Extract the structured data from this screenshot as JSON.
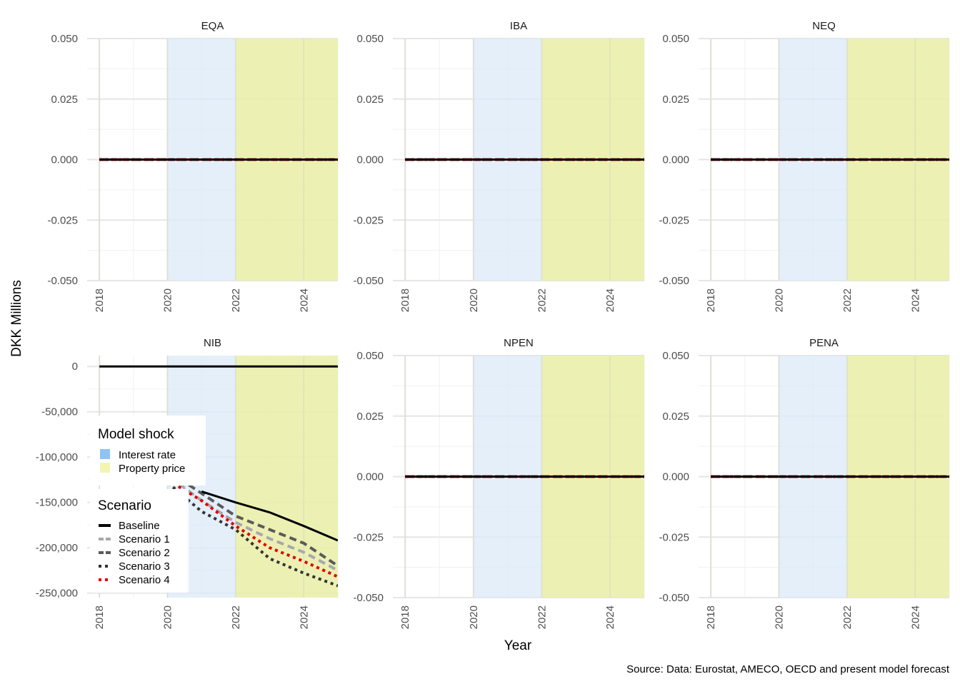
{
  "y_axis_label": "DKK Millions",
  "x_axis_label": "Year",
  "caption": "Source: Data: Eurostat, AMECO, OECD and present model forecast",
  "colors": {
    "interest_rate_band": "#dbe9f8",
    "property_price_band": "#e9eea6",
    "grid": "#e6e6e6",
    "baseline": "#000000",
    "scenario_1": "#a8a8b0",
    "scenario_2": "#5a5a5a",
    "scenario_3": "#333333",
    "scenario_4": "#e00000"
  },
  "legend": {
    "shock_title": "Model shock",
    "shock_items": [
      {
        "label": "Interest rate",
        "color": "#8fc3f2"
      },
      {
        "label": "Property price",
        "color": "#f3f5b0"
      }
    ],
    "scenario_title": "Scenario",
    "scenario_items": [
      {
        "label": "Baseline",
        "color": "#000000",
        "dash": "solid"
      },
      {
        "label": "Scenario 1",
        "color": "#a8a8b0",
        "dash": "dashed"
      },
      {
        "label": "Scenario 2",
        "color": "#5a5a5a",
        "dash": "dashed"
      },
      {
        "label": "Scenario 3",
        "color": "#333333",
        "dash": "dotted"
      },
      {
        "label": "Scenario 4",
        "color": "#e00000",
        "dash": "dotted"
      }
    ]
  },
  "chart_data": [
    {
      "type": "line",
      "title": "EQA",
      "xlim": [
        2018,
        2025
      ],
      "x_ticks": [
        2018,
        2020,
        2022,
        2024
      ],
      "ylim": [
        -0.05,
        0.05
      ],
      "y_ticks": [
        0.05,
        0.025,
        0,
        -0.025,
        -0.05
      ],
      "y_tick_labels": [
        "0.050",
        "0.025",
        "0.000",
        "-0.025",
        "-0.050"
      ],
      "shaded": [
        {
          "from": 2020,
          "to": 2022,
          "shock": "Interest rate"
        },
        {
          "from": 2022,
          "to": 2025,
          "shock": "Property price"
        }
      ],
      "x": [
        2018,
        2019,
        2020,
        2021,
        2022,
        2023,
        2024,
        2025
      ],
      "series": [
        {
          "name": "Baseline",
          "values": [
            0,
            0,
            0,
            0,
            0,
            0,
            0,
            0
          ]
        },
        {
          "name": "Scenario 1",
          "values": [
            0,
            0,
            0,
            0,
            0,
            0,
            0,
            0
          ]
        },
        {
          "name": "Scenario 2",
          "values": [
            0,
            0,
            0,
            0,
            0,
            0,
            0,
            0
          ]
        },
        {
          "name": "Scenario 3",
          "values": [
            0,
            0,
            0,
            0,
            0,
            0,
            0,
            0
          ]
        },
        {
          "name": "Scenario 4",
          "values": [
            0,
            0,
            0,
            0,
            0,
            0,
            0,
            0
          ]
        }
      ]
    },
    {
      "type": "line",
      "title": "IBA",
      "xlim": [
        2018,
        2025
      ],
      "x_ticks": [
        2018,
        2020,
        2022,
        2024
      ],
      "ylim": [
        -0.05,
        0.05
      ],
      "y_ticks": [
        0.05,
        0.025,
        0,
        -0.025,
        -0.05
      ],
      "y_tick_labels": [
        "0.050",
        "0.025",
        "0.000",
        "-0.025",
        "-0.050"
      ],
      "shaded": [
        {
          "from": 2020,
          "to": 2022,
          "shock": "Interest rate"
        },
        {
          "from": 2022,
          "to": 2025,
          "shock": "Property price"
        }
      ],
      "x": [
        2018,
        2019,
        2020,
        2021,
        2022,
        2023,
        2024,
        2025
      ],
      "series": [
        {
          "name": "Baseline",
          "values": [
            0,
            0,
            0,
            0,
            0,
            0,
            0,
            0
          ]
        },
        {
          "name": "Scenario 1",
          "values": [
            0,
            0,
            0,
            0,
            0,
            0,
            0,
            0
          ]
        },
        {
          "name": "Scenario 2",
          "values": [
            0,
            0,
            0,
            0,
            0,
            0,
            0,
            0
          ]
        },
        {
          "name": "Scenario 3",
          "values": [
            0,
            0,
            0,
            0,
            0,
            0,
            0,
            0
          ]
        },
        {
          "name": "Scenario 4",
          "values": [
            0,
            0,
            0,
            0,
            0,
            0,
            0,
            0
          ]
        }
      ]
    },
    {
      "type": "line",
      "title": "NEQ",
      "xlim": [
        2018,
        2025
      ],
      "x_ticks": [
        2018,
        2020,
        2022,
        2024
      ],
      "ylim": [
        -0.05,
        0.05
      ],
      "y_ticks": [
        0.05,
        0.025,
        0,
        -0.025,
        -0.05
      ],
      "y_tick_labels": [
        "0.050",
        "0.025",
        "0.000",
        "-0.025",
        "-0.050"
      ],
      "shaded": [
        {
          "from": 2020,
          "to": 2022,
          "shock": "Interest rate"
        },
        {
          "from": 2022,
          "to": 2025,
          "shock": "Property price"
        }
      ],
      "x": [
        2018,
        2019,
        2020,
        2021,
        2022,
        2023,
        2024,
        2025
      ],
      "series": [
        {
          "name": "Baseline",
          "values": [
            0,
            0,
            0,
            0,
            0,
            0,
            0,
            0
          ]
        },
        {
          "name": "Scenario 1",
          "values": [
            0,
            0,
            0,
            0,
            0,
            0,
            0,
            0
          ]
        },
        {
          "name": "Scenario 2",
          "values": [
            0,
            0,
            0,
            0,
            0,
            0,
            0,
            0
          ]
        },
        {
          "name": "Scenario 3",
          "values": [
            0,
            0,
            0,
            0,
            0,
            0,
            0,
            0
          ]
        },
        {
          "name": "Scenario 4",
          "values": [
            0,
            0,
            0,
            0,
            0,
            0,
            0,
            0
          ]
        }
      ]
    },
    {
      "type": "line",
      "title": "NIB",
      "xlim": [
        2018,
        2025
      ],
      "x_ticks": [
        2018,
        2020,
        2022,
        2024
      ],
      "ylim": [
        -255000,
        12000
      ],
      "y_ticks": [
        0,
        -50000,
        -100000,
        -150000,
        -200000,
        -250000
      ],
      "y_tick_labels": [
        "0",
        "-50,000",
        "-100,000",
        "-150,000",
        "-200,000",
        "-250,000"
      ],
      "shaded": [
        {
          "from": 2020,
          "to": 2022,
          "shock": "Interest rate"
        },
        {
          "from": 2022,
          "to": 2025,
          "shock": "Property price"
        }
      ],
      "x": [
        2018,
        2019,
        2020,
        2021,
        2022,
        2023,
        2024,
        2025
      ],
      "series": [
        {
          "name": "Baseline",
          "values": [
            0,
            0,
            0,
            0,
            0,
            0,
            0,
            0
          ]
        },
        {
          "name": "Scenario 1",
          "values": [
            -80000,
            -100000,
            -120000,
            -148000,
            -172000,
            -190000,
            -205000,
            -225000
          ]
        },
        {
          "name": "Scenario 2",
          "values": [
            -75000,
            -95000,
            -115000,
            -140000,
            -165000,
            -180000,
            -195000,
            -220000
          ]
        },
        {
          "name": "Scenario 3",
          "values": [
            -90000,
            -110000,
            -128000,
            -160000,
            -180000,
            -212000,
            -228000,
            -242000
          ]
        },
        {
          "name": "Scenario 4",
          "values": [
            -85000,
            -105000,
            -125000,
            -148000,
            -176000,
            -200000,
            -215000,
            -232000
          ]
        }
      ],
      "baseline_overlay": {
        "name": "Baseline",
        "x": [
          2021,
          2022,
          2023,
          2024,
          2025
        ],
        "values": [
          -138000,
          -150000,
          -161000,
          -176000,
          -192000
        ]
      }
    },
    {
      "type": "line",
      "title": "NPEN",
      "xlim": [
        2018,
        2025
      ],
      "x_ticks": [
        2018,
        2020,
        2022,
        2024
      ],
      "ylim": [
        -0.05,
        0.05
      ],
      "y_ticks": [
        0.05,
        0.025,
        0,
        -0.025,
        -0.05
      ],
      "y_tick_labels": [
        "0.050",
        "0.025",
        "0.000",
        "-0.025",
        "-0.050"
      ],
      "shaded": [
        {
          "from": 2020,
          "to": 2022,
          "shock": "Interest rate"
        },
        {
          "from": 2022,
          "to": 2025,
          "shock": "Property price"
        }
      ],
      "x": [
        2018,
        2019,
        2020,
        2021,
        2022,
        2023,
        2024,
        2025
      ],
      "series": [
        {
          "name": "Baseline",
          "values": [
            0,
            0,
            0,
            0,
            0,
            0,
            0,
            0
          ]
        },
        {
          "name": "Scenario 1",
          "values": [
            0,
            0,
            0,
            0,
            0,
            0,
            0,
            0
          ]
        },
        {
          "name": "Scenario 2",
          "values": [
            0,
            0,
            0,
            0,
            0,
            0,
            0,
            0
          ]
        },
        {
          "name": "Scenario 3",
          "values": [
            0,
            0,
            0,
            0,
            0,
            0,
            0,
            0
          ]
        },
        {
          "name": "Scenario 4",
          "values": [
            0,
            0,
            0,
            0,
            0,
            0,
            0,
            0
          ]
        }
      ]
    },
    {
      "type": "line",
      "title": "PENA",
      "xlim": [
        2018,
        2025
      ],
      "x_ticks": [
        2018,
        2020,
        2022,
        2024
      ],
      "ylim": [
        -0.05,
        0.05
      ],
      "y_ticks": [
        0.05,
        0.025,
        0,
        -0.025,
        -0.05
      ],
      "y_tick_labels": [
        "0.050",
        "0.025",
        "0.000",
        "-0.025",
        "-0.050"
      ],
      "shaded": [
        {
          "from": 2020,
          "to": 2022,
          "shock": "Interest rate"
        },
        {
          "from": 2022,
          "to": 2025,
          "shock": "Property price"
        }
      ],
      "x": [
        2018,
        2019,
        2020,
        2021,
        2022,
        2023,
        2024,
        2025
      ],
      "series": [
        {
          "name": "Baseline",
          "values": [
            0,
            0,
            0,
            0,
            0,
            0,
            0,
            0
          ]
        },
        {
          "name": "Scenario 1",
          "values": [
            0,
            0,
            0,
            0,
            0,
            0,
            0,
            0
          ]
        },
        {
          "name": "Scenario 2",
          "values": [
            0,
            0,
            0,
            0,
            0,
            0,
            0,
            0
          ]
        },
        {
          "name": "Scenario 3",
          "values": [
            0,
            0,
            0,
            0,
            0,
            0,
            0,
            0
          ]
        },
        {
          "name": "Scenario 4",
          "values": [
            0,
            0,
            0,
            0,
            0,
            0,
            0,
            0
          ]
        }
      ]
    }
  ]
}
